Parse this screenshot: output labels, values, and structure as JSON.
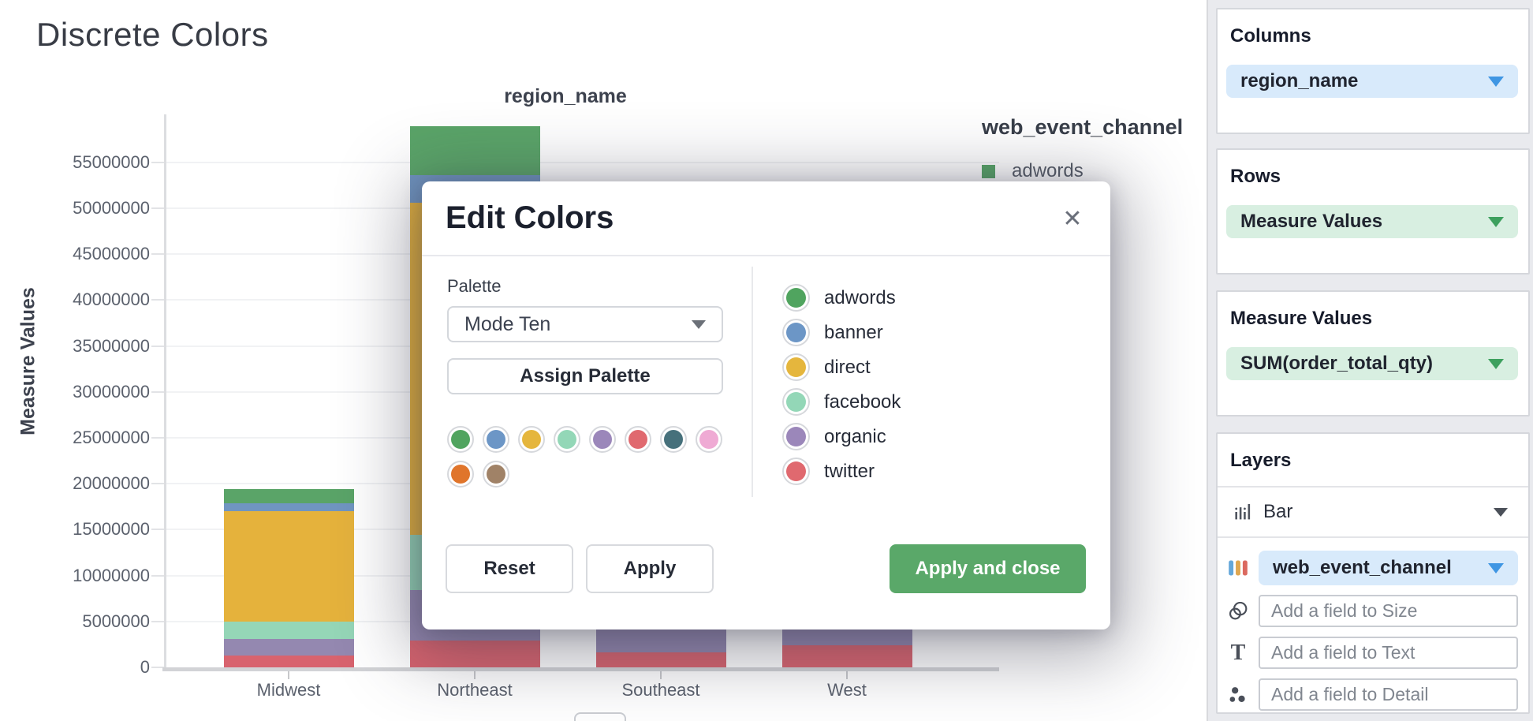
{
  "page": {
    "title": "Discrete Colors"
  },
  "colors": {
    "accent_blue": "#3f96e3",
    "pill_blue_bg": "#d8eafb",
    "accent_green": "#3da05e",
    "pill_green_bg": "#d8efe1",
    "apply_green": "#5aa869",
    "sidebar_bg": "#e9eaee"
  },
  "chart_data": {
    "type": "bar",
    "stacked": true,
    "title": "Discrete Colors",
    "xlabel": "region_name",
    "ylabel": "Measure Values",
    "categories": [
      "Midwest",
      "Northeast",
      "Southeast",
      "West"
    ],
    "series": [
      {
        "name": "adwords",
        "color": "#5aa468",
        "values": [
          1500000,
          5300000,
          2000000,
          2000000
        ]
      },
      {
        "name": "banner",
        "color": "#7095c1",
        "values": [
          900000,
          3000000,
          1500000,
          1500000
        ]
      },
      {
        "name": "direct",
        "color": "#e5b23c",
        "values": [
          12000000,
          36200000,
          20000000,
          18000000
        ]
      },
      {
        "name": "facebook",
        "color": "#95d6b7",
        "values": [
          1900000,
          6000000,
          4000000,
          4000000
        ]
      },
      {
        "name": "organic",
        "color": "#9488b0",
        "values": [
          1800000,
          5500000,
          3300000,
          2400000
        ]
      },
      {
        "name": "twitter",
        "color": "#d8636e",
        "values": [
          1300000,
          2900000,
          1600000,
          2400000
        ]
      }
    ],
    "stack_order_bottom_to_top": [
      "twitter",
      "organic",
      "facebook",
      "direct",
      "banner",
      "adwords"
    ],
    "y_tick_labels": [
      "0",
      "5000000",
      "10000000",
      "15000000",
      "20000000",
      "25000000",
      "30000000",
      "35000000",
      "40000000",
      "45000000",
      "50000000",
      "55000000"
    ],
    "ylim": [
      0,
      59000000
    ],
    "grid": true,
    "legend": {
      "position": "top-right",
      "title": "web_event_channel",
      "visible_items": [
        {
          "label": "adwords",
          "color": "#57a467"
        }
      ]
    }
  },
  "modal": {
    "title": "Edit Colors",
    "close_label": "✕",
    "palette_label": "Palette",
    "palette_value": "Mode Ten",
    "assign_button": "Assign Palette",
    "palette_colors": [
      "#50a45f",
      "#6c96c6",
      "#e5b63d",
      "#93d7b7",
      "#9b87ba",
      "#e0696f",
      "#46707b",
      "#efaad4",
      "#e0752b",
      "#a08267"
    ],
    "legend_items": [
      {
        "label": "adwords",
        "color": "#50a45f"
      },
      {
        "label": "banner",
        "color": "#6c96c6"
      },
      {
        "label": "direct",
        "color": "#e5b63d"
      },
      {
        "label": "facebook",
        "color": "#93d7b7"
      },
      {
        "label": "organic",
        "color": "#9b87ba"
      },
      {
        "label": "twitter",
        "color": "#e0696f"
      }
    ],
    "reset_button": "Reset",
    "apply_button": "Apply",
    "apply_close_button": "Apply and close"
  },
  "sidebar": {
    "columns": {
      "heading": "Columns",
      "field": "region_name"
    },
    "rows": {
      "heading": "Rows",
      "field": "Measure Values"
    },
    "measure_values": {
      "heading": "Measure Values",
      "field": "SUM(order_total_qty)"
    },
    "layers": {
      "heading": "Layers",
      "layer_type": "Bar",
      "color_field": "web_event_channel",
      "size_placeholder": "Add a field to Size",
      "text_placeholder": "Add a field to Text",
      "detail_placeholder": "Add a field to Detail"
    }
  }
}
